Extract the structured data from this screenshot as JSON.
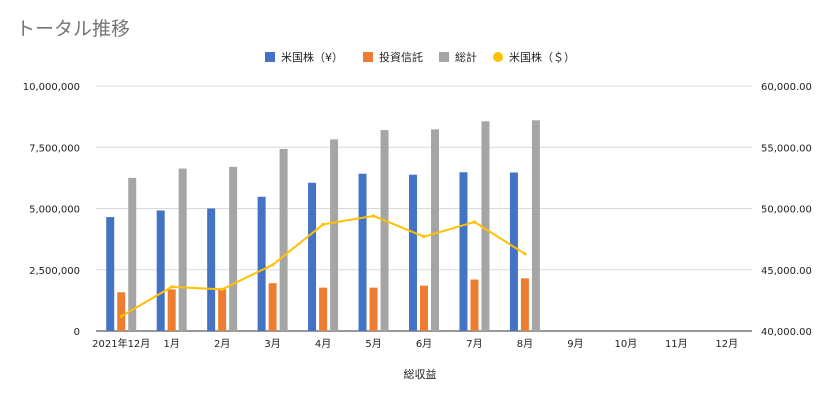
{
  "chart_data": {
    "type": "bar",
    "title": "トータル推移",
    "xlabel": "総収益",
    "categories": [
      "2021年12月",
      "1月",
      "2月",
      "3月",
      "4月",
      "5月",
      "6月",
      "7月",
      "8月",
      "9月",
      "10月",
      "11月",
      "12月"
    ],
    "y_left": {
      "min": 0,
      "max": 10000000,
      "ticks": [
        "0",
        "2,500,000",
        "5,000,000",
        "7,500,000",
        "10,000,000"
      ]
    },
    "y_right": {
      "min": 40000,
      "max": 60000,
      "ticks": [
        "40,000.00",
        "45,000.00",
        "50,000.00",
        "55,000.00",
        "60,000.00"
      ]
    },
    "grid": true,
    "legend_position": "top",
    "series": [
      {
        "name": "米国株（¥）",
        "kind": "bar",
        "axis": "left",
        "color": "#4472c4",
        "values": [
          4650000,
          4920000,
          5000000,
          5480000,
          6050000,
          6420000,
          6380000,
          6480000,
          6470000,
          null,
          null,
          null,
          null
        ]
      },
      {
        "name": "投資信託",
        "kind": "bar",
        "axis": "left",
        "color": "#ed7d31",
        "values": [
          1580000,
          1700000,
          1700000,
          1950000,
          1770000,
          1770000,
          1850000,
          2100000,
          2150000,
          null,
          null,
          null,
          null
        ]
      },
      {
        "name": "総計",
        "kind": "bar",
        "axis": "left",
        "color": "#a5a5a5",
        "values": [
          6250000,
          6630000,
          6700000,
          7430000,
          7820000,
          8200000,
          8230000,
          8560000,
          8600000,
          null,
          null,
          null,
          null
        ]
      },
      {
        "name": "米国株（＄）",
        "kind": "line",
        "axis": "right",
        "color": "#ffc000",
        "values": [
          41200,
          43600,
          43400,
          45400,
          48700,
          49400,
          47700,
          48900,
          46300,
          null,
          null,
          null,
          null
        ]
      }
    ]
  }
}
